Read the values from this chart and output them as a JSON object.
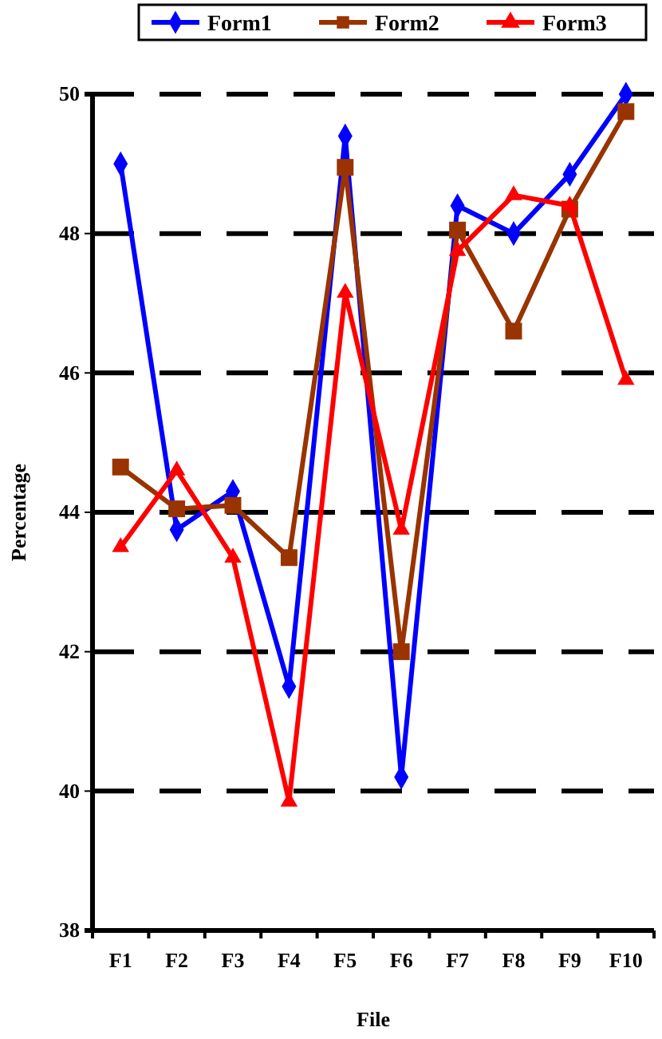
{
  "chart_data": {
    "type": "line",
    "xlabel": "File",
    "ylabel": "Percentage",
    "categories": [
      "F1",
      "F2",
      "F3",
      "F4",
      "F5",
      "F6",
      "F7",
      "F8",
      "F9",
      "F10"
    ],
    "series": [
      {
        "name": "Form1",
        "color": "#0000ff",
        "marker": "diamond",
        "values": [
          49.0,
          43.75,
          44.3,
          41.5,
          49.4,
          40.2,
          48.4,
          48.0,
          48.85,
          50.0
        ]
      },
      {
        "name": "Form2",
        "color": "#993300",
        "marker": "square",
        "values": [
          44.65,
          44.05,
          44.1,
          43.35,
          48.95,
          42.0,
          48.05,
          46.6,
          48.35,
          49.75
        ]
      },
      {
        "name": "Form3",
        "color": "#ff0000",
        "marker": "triangle",
        "values": [
          43.5,
          44.6,
          43.35,
          39.85,
          47.15,
          43.75,
          47.75,
          48.55,
          48.4,
          45.9
        ]
      }
    ],
    "ylim": [
      38,
      50
    ],
    "yticks": [
      38,
      40,
      42,
      44,
      46,
      48,
      50
    ],
    "grid": "y",
    "legend": "top",
    "line_style": "solid"
  }
}
